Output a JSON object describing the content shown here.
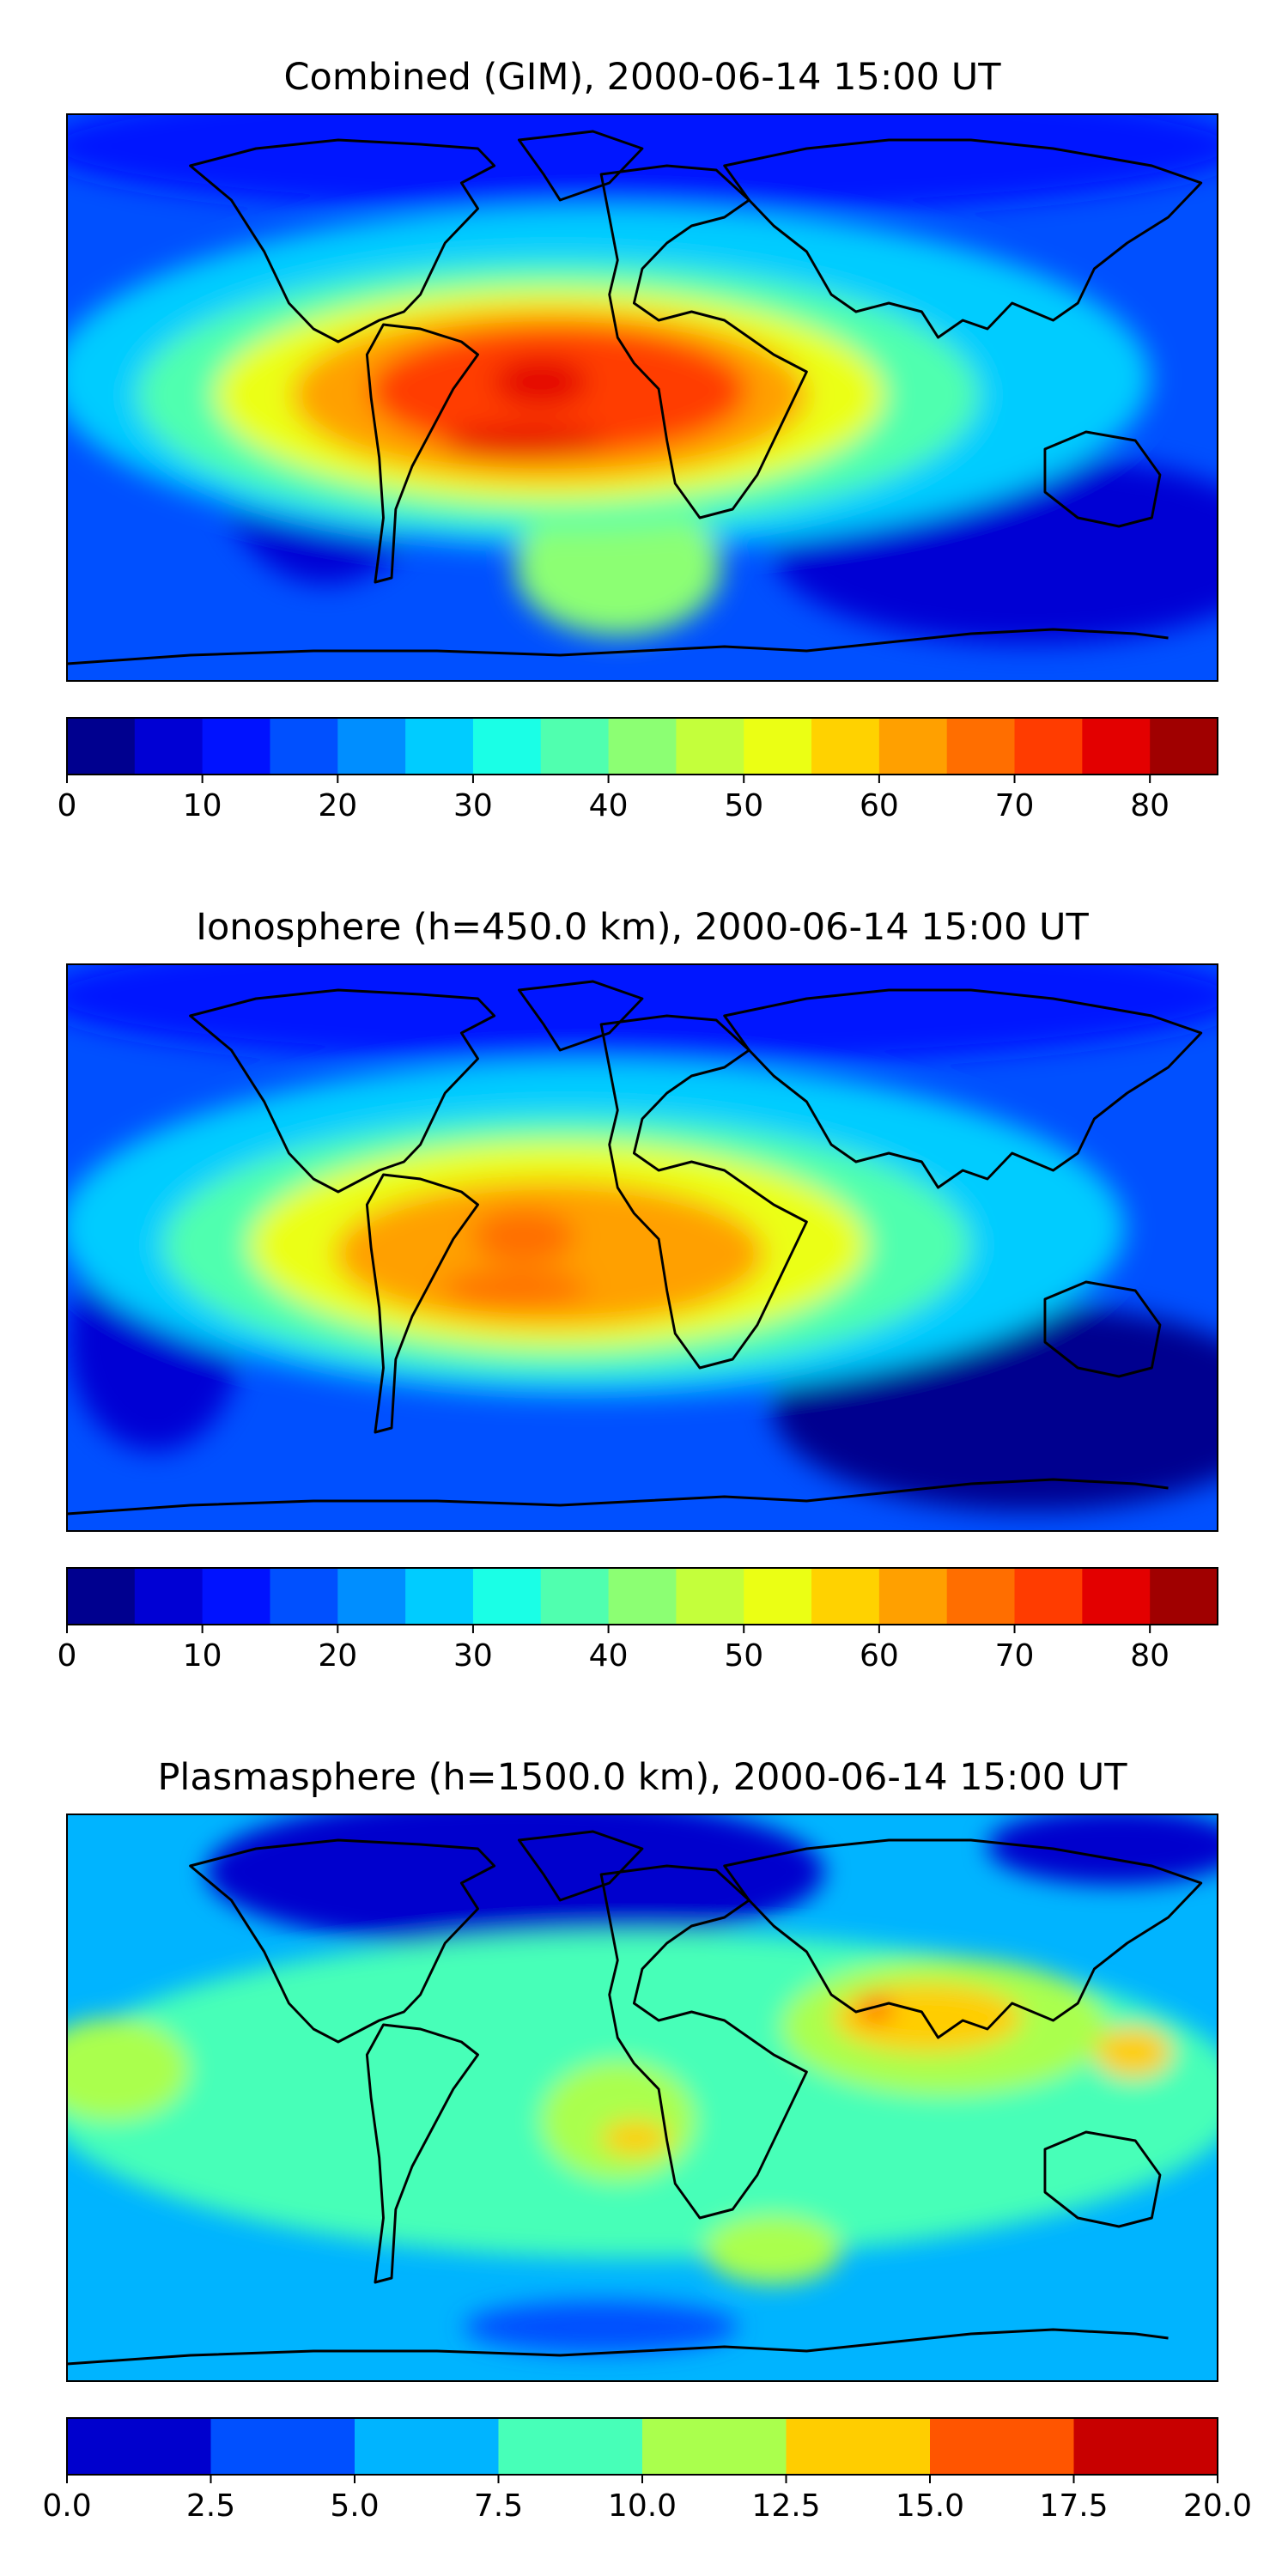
{
  "panels": [
    {
      "title": "Combined (GIM), 2000-06-14 15:00 UT",
      "colorbar": {
        "colors": [
          "#00008f",
          "#0000d4",
          "#0012ff",
          "#0050ff",
          "#008eff",
          "#00ccff",
          "#1affe6",
          "#50ffaf",
          "#8cff73",
          "#c4ff3b",
          "#ebff14",
          "#ffd200",
          "#ffa000",
          "#ff6e00",
          "#ff3c00",
          "#e30000",
          "#a00000"
        ],
        "ticks": [
          "0",
          "10",
          "20",
          "30",
          "40",
          "50",
          "60",
          "70",
          "80"
        ],
        "tick_values": [
          0,
          10,
          20,
          30,
          40,
          50,
          60,
          70,
          80
        ],
        "range": [
          0,
          85
        ]
      }
    },
    {
      "title": "Ionosphere  (h=450.0 km), 2000-06-14 15:00 UT",
      "colorbar": {
        "colors": [
          "#00008f",
          "#0000d4",
          "#0012ff",
          "#0050ff",
          "#008eff",
          "#00ccff",
          "#1affe6",
          "#50ffaf",
          "#8cff73",
          "#c4ff3b",
          "#ebff14",
          "#ffd200",
          "#ffa000",
          "#ff6e00",
          "#ff3c00",
          "#e30000",
          "#a00000"
        ],
        "ticks": [
          "0",
          "10",
          "20",
          "30",
          "40",
          "50",
          "60",
          "70",
          "80"
        ],
        "tick_values": [
          0,
          10,
          20,
          30,
          40,
          50,
          60,
          70,
          80
        ],
        "range": [
          0,
          85
        ]
      }
    },
    {
      "title": "Plasmasphere (h=1500.0 km), 2000-06-14 15:00 UT",
      "colorbar": {
        "colors": [
          "#0000cd",
          "#0050ff",
          "#00b4ff",
          "#47ffb8",
          "#aaff4d",
          "#ffcd00",
          "#ff5500",
          "#c80000"
        ],
        "ticks": [
          "0.0",
          "2.5",
          "5.0",
          "7.5",
          "10.0",
          "12.5",
          "15.0",
          "17.5",
          "20.0"
        ],
        "tick_values": [
          0,
          2.5,
          5,
          7.5,
          10,
          12.5,
          15,
          17.5,
          20
        ],
        "range": [
          0,
          20
        ]
      }
    }
  ],
  "field_colors": {
    "combined": {
      "background": "#0050ff",
      "high_lat": "#0012ff",
      "belt": "#00ccff",
      "mid": "#50ffaf",
      "warm": "#ebff14",
      "hot": "#ffa000",
      "peak": "#ff3c00",
      "max": "#e30000",
      "pacific_low": "#0000d4",
      "south_atl": "#8cff73"
    },
    "ionosphere": {
      "background": "#0050ff",
      "high_lat": "#0012ff",
      "belt": "#00ccff",
      "mid": "#50ffaf",
      "warm": "#ebff14",
      "hot": "#ffa000",
      "peak": "#ff6e00",
      "pacific_low": "#0000d4",
      "south_low": "#00008f"
    },
    "plasmasphere": {
      "background": "#00b4ff",
      "north_low": "#0000cd",
      "band": "#47ffb8",
      "green": "#aaff4d",
      "warm": "#ffcd00",
      "hot": "#ff5500",
      "south_low": "#0050ff"
    }
  }
}
